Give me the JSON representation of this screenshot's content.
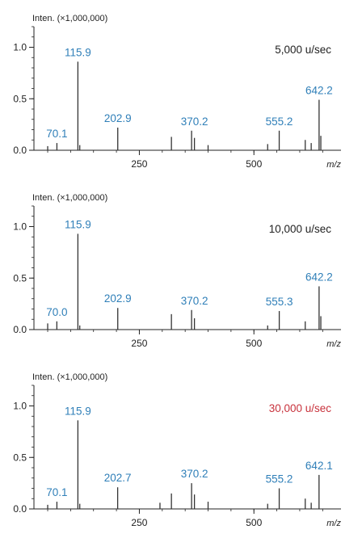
{
  "chart_data": [
    {
      "type": "bar",
      "ylabel": "Inten. (×1,000,000)",
      "xlabel": "m/z",
      "speed_label": "5,000 u/sec",
      "speed_color": "#222222",
      "xlim": [
        20,
        690
      ],
      "ylim": [
        0,
        1.2
      ],
      "x_ticks": [
        250,
        500
      ],
      "y_ticks": [
        "0.0",
        "0.5",
        "1.0"
      ],
      "y_tick_values": [
        0,
        0.5,
        1.0
      ],
      "peaks": [
        {
          "x": 50,
          "y": 0.04
        },
        {
          "x": 70.1,
          "y": 0.07
        },
        {
          "x": 115.9,
          "y": 0.86
        },
        {
          "x": 120,
          "y": 0.05
        },
        {
          "x": 202.9,
          "y": 0.22
        },
        {
          "x": 320,
          "y": 0.13
        },
        {
          "x": 364,
          "y": 0.19
        },
        {
          "x": 370.2,
          "y": 0.12
        },
        {
          "x": 400,
          "y": 0.05
        },
        {
          "x": 530,
          "y": 0.06
        },
        {
          "x": 555.2,
          "y": 0.19
        },
        {
          "x": 612,
          "y": 0.1
        },
        {
          "x": 625,
          "y": 0.07
        },
        {
          "x": 642.2,
          "y": 0.49
        },
        {
          "x": 646,
          "y": 0.14
        }
      ],
      "labels": [
        {
          "x": 70.1,
          "text": "70.1",
          "y": 0.07
        },
        {
          "x": 115.9,
          "text": "115.9",
          "y": 0.86
        },
        {
          "x": 202.9,
          "text": "202.9",
          "y": 0.22
        },
        {
          "x": 370.2,
          "text": "370.2",
          "y": 0.19
        },
        {
          "x": 555.2,
          "text": "555.2",
          "y": 0.19
        },
        {
          "x": 642.2,
          "text": "642.2",
          "y": 0.49
        }
      ]
    },
    {
      "type": "bar",
      "ylabel": "Inten. (×1,000,000)",
      "xlabel": "m/z",
      "speed_label": "10,000 u/sec",
      "speed_color": "#222222",
      "xlim": [
        20,
        690
      ],
      "ylim": [
        0,
        1.2
      ],
      "x_ticks": [
        250,
        500
      ],
      "y_ticks": [
        "0.0",
        "0.5",
        "1.0"
      ],
      "y_tick_values": [
        0,
        0.5,
        1.0
      ],
      "peaks": [
        {
          "x": 50,
          "y": 0.06
        },
        {
          "x": 70.0,
          "y": 0.08
        },
        {
          "x": 115.9,
          "y": 0.93
        },
        {
          "x": 120,
          "y": 0.04
        },
        {
          "x": 202.9,
          "y": 0.21
        },
        {
          "x": 320,
          "y": 0.15
        },
        {
          "x": 364,
          "y": 0.19
        },
        {
          "x": 370.2,
          "y": 0.11
        },
        {
          "x": 530,
          "y": 0.04
        },
        {
          "x": 555.3,
          "y": 0.18
        },
        {
          "x": 612,
          "y": 0.08
        },
        {
          "x": 642.2,
          "y": 0.42
        },
        {
          "x": 646,
          "y": 0.13
        }
      ],
      "labels": [
        {
          "x": 70.0,
          "text": "70.0",
          "y": 0.08
        },
        {
          "x": 115.9,
          "text": "115.9",
          "y": 0.93
        },
        {
          "x": 202.9,
          "text": "202.9",
          "y": 0.21
        },
        {
          "x": 370.2,
          "text": "370.2",
          "y": 0.19
        },
        {
          "x": 555.3,
          "text": "555.3",
          "y": 0.18
        },
        {
          "x": 642.2,
          "text": "642.2",
          "y": 0.42
        }
      ]
    },
    {
      "type": "bar",
      "ylabel": "Inten. (×1,000,000)",
      "xlabel": "m/z",
      "speed_label": "30,000 u/sec",
      "speed_color": "#c8323c",
      "xlim": [
        20,
        690
      ],
      "ylim": [
        0,
        1.2
      ],
      "x_ticks": [
        250,
        500
      ],
      "y_ticks": [
        "0.0",
        "0.5",
        "1.0"
      ],
      "y_tick_values": [
        0,
        0.5,
        1.0
      ],
      "peaks": [
        {
          "x": 50,
          "y": 0.04
        },
        {
          "x": 70.1,
          "y": 0.07
        },
        {
          "x": 115.9,
          "y": 0.86
        },
        {
          "x": 120,
          "y": 0.05
        },
        {
          "x": 202.7,
          "y": 0.21
        },
        {
          "x": 295,
          "y": 0.06
        },
        {
          "x": 320,
          "y": 0.15
        },
        {
          "x": 364,
          "y": 0.25
        },
        {
          "x": 370.2,
          "y": 0.14
        },
        {
          "x": 400,
          "y": 0.07
        },
        {
          "x": 530,
          "y": 0.05
        },
        {
          "x": 555.2,
          "y": 0.2
        },
        {
          "x": 612,
          "y": 0.1
        },
        {
          "x": 625,
          "y": 0.06
        },
        {
          "x": 642.1,
          "y": 0.33
        }
      ],
      "labels": [
        {
          "x": 70.1,
          "text": "70.1",
          "y": 0.07
        },
        {
          "x": 115.9,
          "text": "115.9",
          "y": 0.86
        },
        {
          "x": 202.7,
          "text": "202.7",
          "y": 0.21
        },
        {
          "x": 370.2,
          "text": "370.2",
          "y": 0.25
        },
        {
          "x": 555.2,
          "text": "555.2",
          "y": 0.2
        },
        {
          "x": 642.1,
          "text": "642.1",
          "y": 0.33
        }
      ]
    }
  ]
}
